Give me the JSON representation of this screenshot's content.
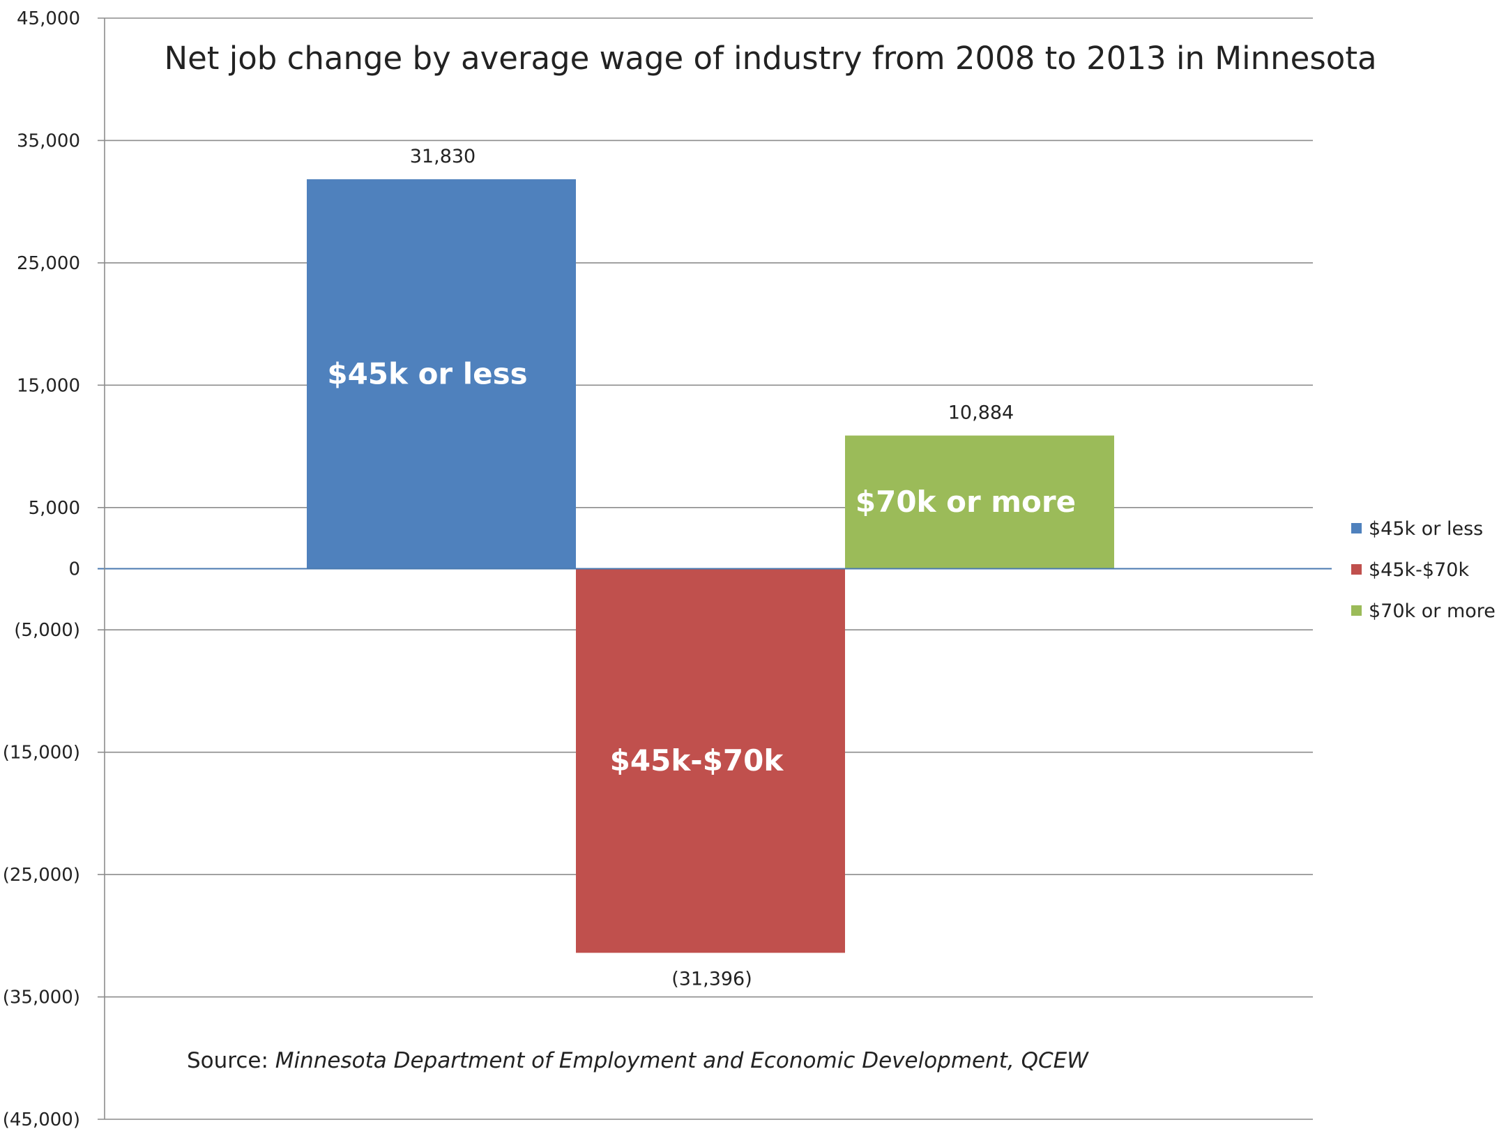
{
  "chart_data": {
    "type": "bar",
    "title": "Net job change by average wage of industry from 2008 to 2013 in Minnesota",
    "categories": [
      "$45k or less",
      "$45k-$70k",
      "$70k or more"
    ],
    "values": [
      31830,
      -31396,
      10884
    ],
    "data_labels": [
      "31,830",
      "(31,396)",
      "10,884"
    ],
    "in_bar_labels": [
      "$45k or less",
      "$45k-$70k",
      "$70k or more"
    ],
    "colors": [
      "#4F81BD",
      "#C0504D",
      "#9BBB59"
    ],
    "y_ticks": [
      45000,
      35000,
      25000,
      15000,
      5000,
      0,
      -5000,
      -15000,
      -25000,
      -35000,
      -45000
    ],
    "y_tick_labels": [
      "45,000",
      "35,000",
      "25,000",
      "15,000",
      "5,000",
      "0",
      "(5,000)",
      "(15,000)",
      "(25,000)",
      "(35,000)",
      "(45,000)"
    ],
    "ylim": [
      -45000,
      45000
    ],
    "grid": true,
    "legend": {
      "position": "right",
      "entries": [
        "$45k or less",
        "$45k-$70k",
        "$70k or more"
      ]
    },
    "source_prefix": "Source: ",
    "source_text": "Minnesota Department of Employment and Economic Development, QCEW"
  }
}
